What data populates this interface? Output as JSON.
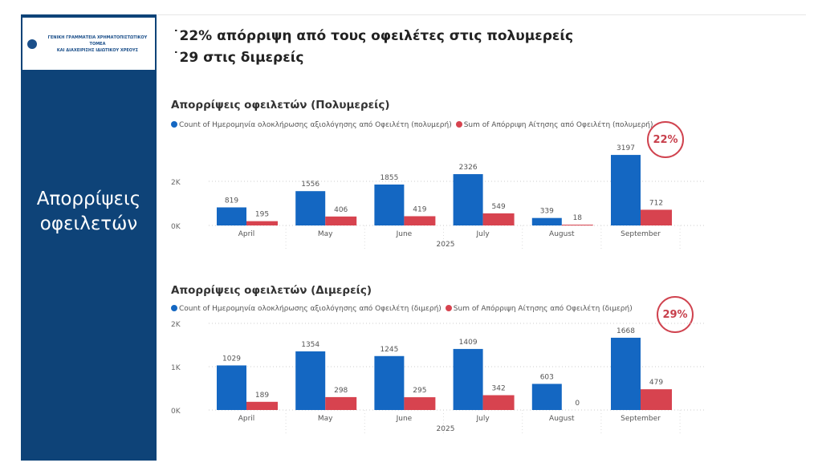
{
  "logo": {
    "line1": "ΓΕΝΙΚΗ ΓΡΑΜΜΑΤΕΙΑ ΧΡΗΜΑΤΟΠΙΣΤΩΤΙΚΟΥ ΤΟΜΕΑ",
    "line2": "ΚΑΙ ΔΙΑΧΕΙΡΙΣΗΣ ΙΔΙΩΤΙΚΟΥ ΧΡΕΟΥΣ"
  },
  "sidebar": {
    "title": "Απορρίψεις οφειλετών"
  },
  "headlines": [
    "˙22% απόρριψη από τους οφειλέτες στις πολυμερείς",
    "˙29 στις διμερείς"
  ],
  "colors": {
    "blue": "#1467c2",
    "red": "#d7434f",
    "sidebar": "#0e4378"
  },
  "chart_data": [
    {
      "type": "bar",
      "title": "Απορρίψεις οφειλετών (Πολυμερείς)",
      "badge": "22%",
      "categories": [
        "April",
        "May",
        "June",
        "July",
        "August",
        "September"
      ],
      "xlabel": "2025",
      "yticks": [
        "0K",
        "2K"
      ],
      "ytick_values": [
        0,
        2000
      ],
      "ylim": [
        0,
        3600
      ],
      "series": [
        {
          "name": "Count of Ημερομηνία ολοκλήρωσης αξιολόγησης από Οφειλέτη (πολυμερή)",
          "values": [
            819,
            1556,
            1855,
            2326,
            339,
            3197
          ]
        },
        {
          "name": "Sum of Απόρριψη Αίτησης από Οφειλέτη (πολυμερή)",
          "values": [
            195,
            406,
            419,
            549,
            18,
            712
          ]
        }
      ]
    },
    {
      "type": "bar",
      "title": "Απορρίψεις οφειλετών (Διμερείς)",
      "badge": "29%",
      "categories": [
        "April",
        "May",
        "June",
        "July",
        "August",
        "September"
      ],
      "xlabel": "2025",
      "yticks": [
        "0K",
        "1K",
        "2K"
      ],
      "ytick_values": [
        0,
        1000,
        2000
      ],
      "ylim": [
        0,
        2000
      ],
      "series": [
        {
          "name": "Count of Ημερομηνία ολοκλήρωσης αξιολόγησης από Οφειλέτη (διμερή)",
          "values": [
            1029,
            1354,
            1245,
            1409,
            603,
            1668
          ]
        },
        {
          "name": "Sum of Απόρριψη Αίτησης από Οφειλέτη (διμερή)",
          "values": [
            189,
            298,
            295,
            342,
            0,
            479
          ]
        }
      ]
    }
  ]
}
